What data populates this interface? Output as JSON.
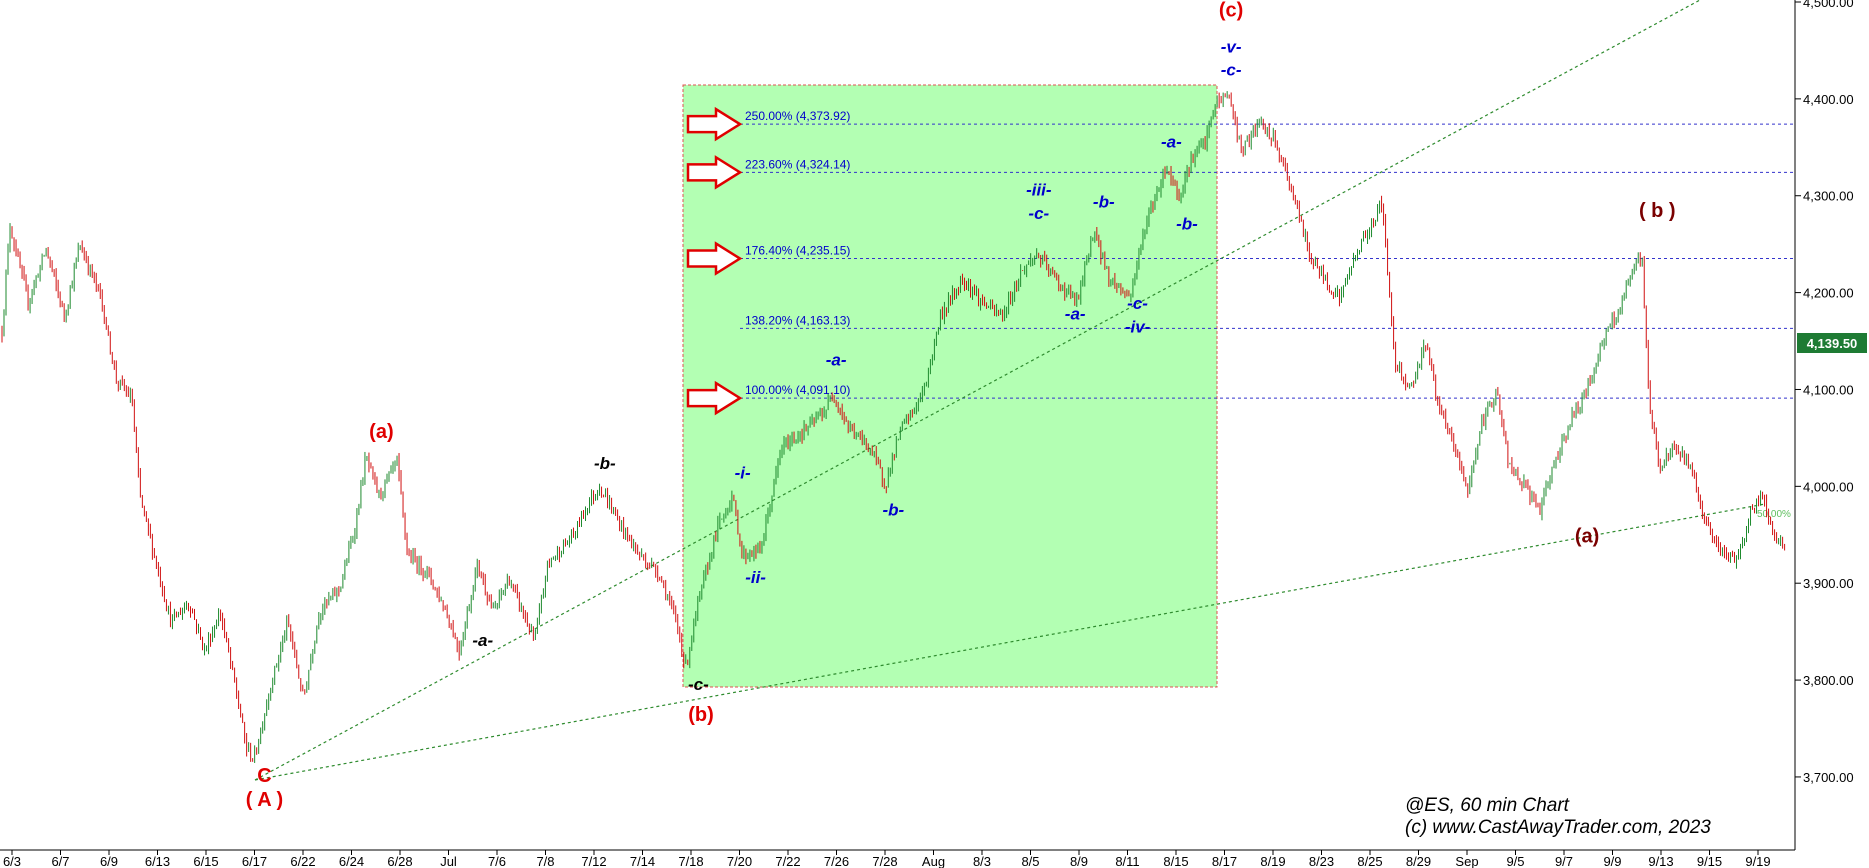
{
  "chart_data": {
    "type": "candlestick",
    "symbol_caption": "@ES, 60 min Chart",
    "copyright": "(c) www.CastAwayTrader.com, 2023",
    "y_range": [
      3670,
      4500
    ],
    "y_ticks": [
      {
        "value": 4500,
        "label": "4,500.00"
      },
      {
        "value": 4400,
        "label": "4,400.00"
      },
      {
        "value": 4300,
        "label": "4,300.00"
      },
      {
        "value": 4200,
        "label": "4,200.00"
      },
      {
        "value": 4100,
        "label": "4,100.00"
      },
      {
        "value": 4000,
        "label": "4,000.00"
      },
      {
        "value": 3900,
        "label": "3,900.00"
      },
      {
        "value": 3800,
        "label": "3,800.00"
      },
      {
        "value": 3700,
        "label": "3,700.00"
      }
    ],
    "x_ticks": [
      "6/3",
      "6/7",
      "6/9",
      "6/13",
      "6/15",
      "6/17",
      "6/22",
      "6/24",
      "6/28",
      "Jul",
      "7/6",
      "7/8",
      "7/12",
      "7/14",
      "7/18",
      "7/20",
      "7/22",
      "7/26",
      "7/28",
      "Aug",
      "8/3",
      "8/5",
      "8/9",
      "8/11",
      "8/15",
      "8/17",
      "8/19",
      "8/23",
      "8/25",
      "8/29",
      "Sep",
      "9/5",
      "9/7",
      "9/9",
      "9/13",
      "9/15",
      "9/19"
    ],
    "last_price": {
      "value": 4139.5,
      "label": "4,139.50",
      "color": "#1e7b34"
    },
    "fib_levels": [
      {
        "value": 4373.92,
        "label": "250.00% (4,373.92)",
        "arrow": true
      },
      {
        "value": 4324.14,
        "label": "223.60% (4,324.14)",
        "arrow": true
      },
      {
        "value": 4235.15,
        "label": "176.40% (4,235.15)",
        "arrow": true
      },
      {
        "value": 4163.13,
        "label": "138.20% (4,163.13)",
        "arrow": false
      },
      {
        "value": 4091.1,
        "label": "100.00% (4,091.10)",
        "arrow": true
      }
    ],
    "channel_label": "50.00%",
    "price_path": [
      {
        "t": 0,
        "p": 4160
      },
      {
        "t": 0.3,
        "p": 4270
      },
      {
        "t": 1.0,
        "p": 4190
      },
      {
        "t": 1.7,
        "p": 4245
      },
      {
        "t": 2.4,
        "p": 4175
      },
      {
        "t": 3.0,
        "p": 4250
      },
      {
        "t": 3.8,
        "p": 4195
      },
      {
        "t": 4.4,
        "p": 4110
      },
      {
        "t": 5.0,
        "p": 4090
      },
      {
        "t": 5.3,
        "p": 3990
      },
      {
        "t": 5.8,
        "p": 3935
      },
      {
        "t": 6.5,
        "p": 3860
      },
      {
        "t": 7.2,
        "p": 3880
      },
      {
        "t": 7.8,
        "p": 3830
      },
      {
        "t": 8.4,
        "p": 3870
      },
      {
        "t": 9.0,
        "p": 3790
      },
      {
        "t": 9.4,
        "p": 3730
      },
      {
        "t": 9.7,
        "p": 3718
      },
      {
        "t": 10.3,
        "p": 3790
      },
      {
        "t": 11.0,
        "p": 3860
      },
      {
        "t": 11.6,
        "p": 3780
      },
      {
        "t": 12.2,
        "p": 3870
      },
      {
        "t": 13.0,
        "p": 3895
      },
      {
        "t": 13.6,
        "p": 3960
      },
      {
        "t": 14.0,
        "p": 4030
      },
      {
        "t": 14.5,
        "p": 3990
      },
      {
        "t": 15.2,
        "p": 4025
      },
      {
        "t": 15.6,
        "p": 3930
      },
      {
        "t": 16.4,
        "p": 3910
      },
      {
        "t": 17.1,
        "p": 3870
      },
      {
        "t": 17.6,
        "p": 3830
      },
      {
        "t": 18.3,
        "p": 3920
      },
      {
        "t": 18.9,
        "p": 3870
      },
      {
        "t": 19.5,
        "p": 3905
      },
      {
        "t": 20.5,
        "p": 3840
      },
      {
        "t": 21.0,
        "p": 3920
      },
      {
        "t": 22.0,
        "p": 3950
      },
      {
        "t": 22.5,
        "p": 3980
      },
      {
        "t": 23.0,
        "p": 4000
      },
      {
        "t": 23.8,
        "p": 3960
      },
      {
        "t": 24.5,
        "p": 3930
      },
      {
        "t": 25.3,
        "p": 3910
      },
      {
        "t": 26.0,
        "p": 3855
      },
      {
        "t": 26.3,
        "p": 3812
      },
      {
        "t": 26.8,
        "p": 3880
      },
      {
        "t": 27.5,
        "p": 3955
      },
      {
        "t": 28.1,
        "p": 3990
      },
      {
        "t": 28.5,
        "p": 3928
      },
      {
        "t": 29.2,
        "p": 3935
      },
      {
        "t": 30.0,
        "p": 4040
      },
      {
        "t": 31.0,
        "p": 4060
      },
      {
        "t": 31.7,
        "p": 4080
      },
      {
        "t": 32.0,
        "p": 4095
      },
      {
        "t": 32.6,
        "p": 4060
      },
      {
        "t": 33.4,
        "p": 4040
      },
      {
        "t": 34.0,
        "p": 4002
      },
      {
        "t": 34.6,
        "p": 4060
      },
      {
        "t": 35.0,
        "p": 4075
      },
      {
        "t": 35.5,
        "p": 4100
      },
      {
        "t": 36.1,
        "p": 4175
      },
      {
        "t": 37.0,
        "p": 4215
      },
      {
        "t": 37.7,
        "p": 4190
      },
      {
        "t": 38.5,
        "p": 4175
      },
      {
        "t": 39.2,
        "p": 4220
      },
      {
        "t": 39.8,
        "p": 4240
      },
      {
        "t": 40.8,
        "p": 4205
      },
      {
        "t": 41.4,
        "p": 4190
      },
      {
        "t": 42.0,
        "p": 4265
      },
      {
        "t": 42.6,
        "p": 4215
      },
      {
        "t": 43.4,
        "p": 4195
      },
      {
        "t": 44.0,
        "p": 4270
      },
      {
        "t": 44.8,
        "p": 4330
      },
      {
        "t": 45.3,
        "p": 4300
      },
      {
        "t": 45.8,
        "p": 4340
      },
      {
        "t": 46.3,
        "p": 4355
      },
      {
        "t": 46.7,
        "p": 4395
      },
      {
        "t": 47.2,
        "p": 4405
      },
      {
        "t": 47.7,
        "p": 4345
      },
      {
        "t": 48.4,
        "p": 4375
      },
      {
        "t": 49.0,
        "p": 4355
      },
      {
        "t": 49.7,
        "p": 4300
      },
      {
        "t": 50.3,
        "p": 4240
      },
      {
        "t": 51.0,
        "p": 4210
      },
      {
        "t": 51.5,
        "p": 4195
      },
      {
        "t": 52.1,
        "p": 4240
      },
      {
        "t": 52.7,
        "p": 4270
      },
      {
        "t": 53.1,
        "p": 4295
      },
      {
        "t": 53.6,
        "p": 4130
      },
      {
        "t": 54.2,
        "p": 4100
      },
      {
        "t": 54.8,
        "p": 4150
      },
      {
        "t": 55.3,
        "p": 4080
      },
      {
        "t": 55.9,
        "p": 4040
      },
      {
        "t": 56.4,
        "p": 3995
      },
      {
        "t": 56.9,
        "p": 4060
      },
      {
        "t": 57.5,
        "p": 4100
      },
      {
        "t": 58.0,
        "p": 4020
      },
      {
        "t": 58.6,
        "p": 4000
      },
      {
        "t": 59.2,
        "p": 3975
      },
      {
        "t": 59.8,
        "p": 4030
      },
      {
        "t": 60.4,
        "p": 4070
      },
      {
        "t": 61.0,
        "p": 4100
      },
      {
        "t": 61.6,
        "p": 4150
      },
      {
        "t": 62.2,
        "p": 4180
      },
      {
        "t": 62.8,
        "p": 4225
      },
      {
        "t": 63.1,
        "p": 4240
      },
      {
        "t": 63.4,
        "p": 4080
      },
      {
        "t": 63.8,
        "p": 4020
      },
      {
        "t": 64.4,
        "p": 4040
      },
      {
        "t": 65.0,
        "p": 4020
      },
      {
        "t": 65.6,
        "p": 3960
      },
      {
        "t": 66.2,
        "p": 3930
      },
      {
        "t": 66.8,
        "p": 3925
      },
      {
        "t": 67.3,
        "p": 3975
      },
      {
        "t": 67.8,
        "p": 3990
      },
      {
        "t": 68.2,
        "p": 3945
      },
      {
        "t": 68.6,
        "p": 3940
      }
    ],
    "annotations": [
      {
        "text": "(c)",
        "t": 47.3,
        "p": 4485,
        "color": "#e00000",
        "style": "paren"
      },
      {
        "text": "-v-",
        "t": 47.3,
        "p": 4448,
        "color": "#0000cc",
        "style": "wave"
      },
      {
        "text": "-c-",
        "t": 47.3,
        "p": 4424,
        "color": "#0000cc",
        "style": "wave"
      },
      {
        "text": "-a-",
        "t": 45.0,
        "p": 4350,
        "color": "#0000cc",
        "style": "wave"
      },
      {
        "text": "-b-",
        "t": 45.6,
        "p": 4265,
        "color": "#0000cc",
        "style": "wave"
      },
      {
        "text": "-iii-",
        "t": 39.9,
        "p": 4300,
        "color": "#0000cc",
        "style": "wave"
      },
      {
        "text": "-c-",
        "t": 39.9,
        "p": 4276,
        "color": "#0000cc",
        "style": "wave"
      },
      {
        "text": "-b-",
        "t": 42.4,
        "p": 4288,
        "color": "#0000cc",
        "style": "wave"
      },
      {
        "text": "-a-",
        "t": 41.3,
        "p": 4172,
        "color": "#0000cc",
        "style": "wave"
      },
      {
        "text": "-c-",
        "t": 43.7,
        "p": 4183,
        "color": "#0000cc",
        "style": "wave"
      },
      {
        "text": "-iv-",
        "t": 43.7,
        "p": 4159,
        "color": "#0000cc",
        "style": "wave"
      },
      {
        "text": "-a-",
        "t": 32.1,
        "p": 4125,
        "color": "#0000cc",
        "style": "wave"
      },
      {
        "text": "-b-",
        "t": 34.3,
        "p": 3970,
        "color": "#0000cc",
        "style": "wave"
      },
      {
        "text": "-i-",
        "t": 28.5,
        "p": 4008,
        "color": "#0000cc",
        "style": "wave"
      },
      {
        "text": "-ii-",
        "t": 29.0,
        "p": 3900,
        "color": "#0000cc",
        "style": "wave"
      },
      {
        "text": "-b-",
        "t": 23.2,
        "p": 4018,
        "color": "#000000",
        "style": "wave"
      },
      {
        "text": "-a-",
        "t": 18.5,
        "p": 3835,
        "color": "#000000",
        "style": "wave"
      },
      {
        "text": "-c-",
        "t": 26.8,
        "p": 3790,
        "color": "#000000",
        "style": "wave"
      },
      {
        "text": "(b)",
        "t": 26.9,
        "p": 3758,
        "color": "#e00000",
        "style": "paren"
      },
      {
        "text": "(a)",
        "t": 14.6,
        "p": 4050,
        "color": "#e00000",
        "style": "paren"
      },
      {
        "text": "C",
        "t": 10.1,
        "p": 3695,
        "color": "#e00000",
        "style": "big"
      },
      {
        "text": "( A )",
        "t": 10.1,
        "p": 3670,
        "color": "#e00000",
        "style": "big"
      },
      {
        "text": "( b )",
        "t": 63.7,
        "p": 4278,
        "color": "#7a0000",
        "style": "paren"
      },
      {
        "text": "(a)",
        "t": 61.0,
        "p": 3942,
        "color": "#7a0000",
        "style": "paren"
      }
    ]
  }
}
